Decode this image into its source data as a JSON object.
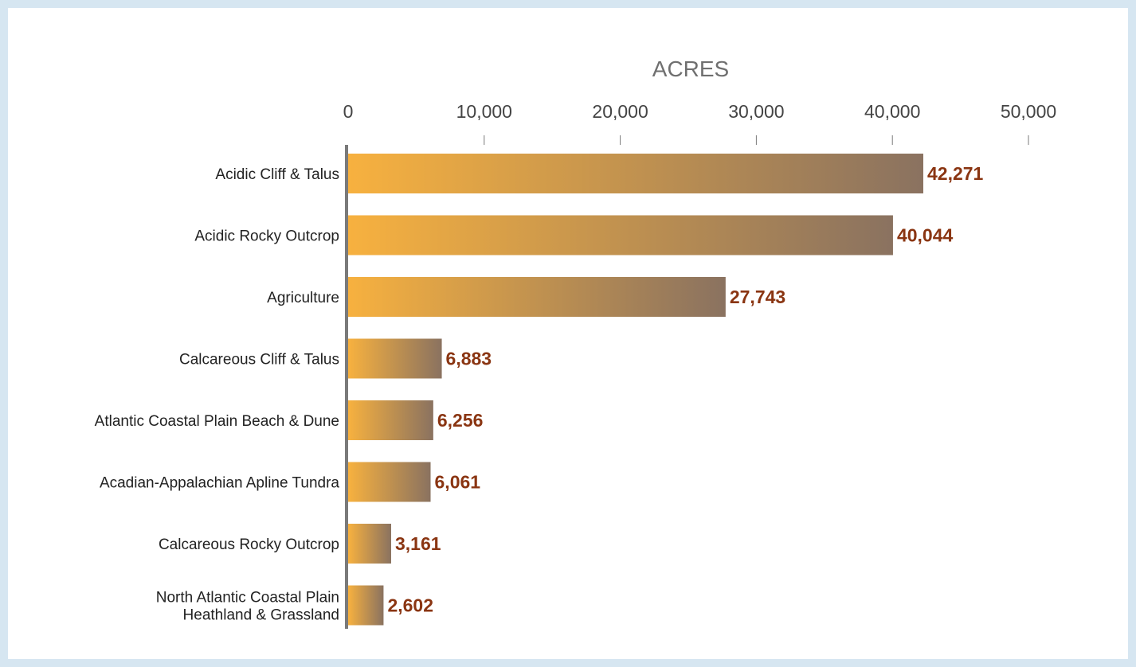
{
  "chart_data": {
    "type": "bar",
    "orientation": "horizontal",
    "xlabel": "ACRES",
    "xlim": [
      0,
      50000
    ],
    "ticks": [
      {
        "value": 0,
        "label": "0"
      },
      {
        "value": 10000,
        "label": "10,000"
      },
      {
        "value": 20000,
        "label": "20,000"
      },
      {
        "value": 30000,
        "label": "30,000"
      },
      {
        "value": 40000,
        "label": "40,000"
      },
      {
        "value": 50000,
        "label": "50,000"
      }
    ],
    "categories": [
      [
        "Acidic Cliff & Talus"
      ],
      [
        "Acidic Rocky Outcrop"
      ],
      [
        "Agriculture"
      ],
      [
        "Calcareous Cliff & Talus"
      ],
      [
        "Atlantic Coastal Plain Beach & Dune"
      ],
      [
        "Acadian-Appalachian Apline Tundra"
      ],
      [
        "Calcareous Rocky Outcrop"
      ],
      [
        "North Atlantic Coastal Plain",
        "Heathland & Grassland"
      ]
    ],
    "values": [
      42271,
      40044,
      27743,
      6883,
      6256,
      6061,
      3161,
      2602
    ],
    "value_labels": [
      "42,271",
      "40,044",
      "27,743",
      "6,883",
      "6,256",
      "6,061",
      "3,161",
      "2,602"
    ],
    "legend": "none",
    "grid": false,
    "colors": {
      "bar_gradient_start": "#f7b13f",
      "bar_gradient_end": "#8a7260",
      "value_label": "#8a3512",
      "axis_line": "#7a7a7a",
      "background": "#d6e6f1"
    }
  }
}
